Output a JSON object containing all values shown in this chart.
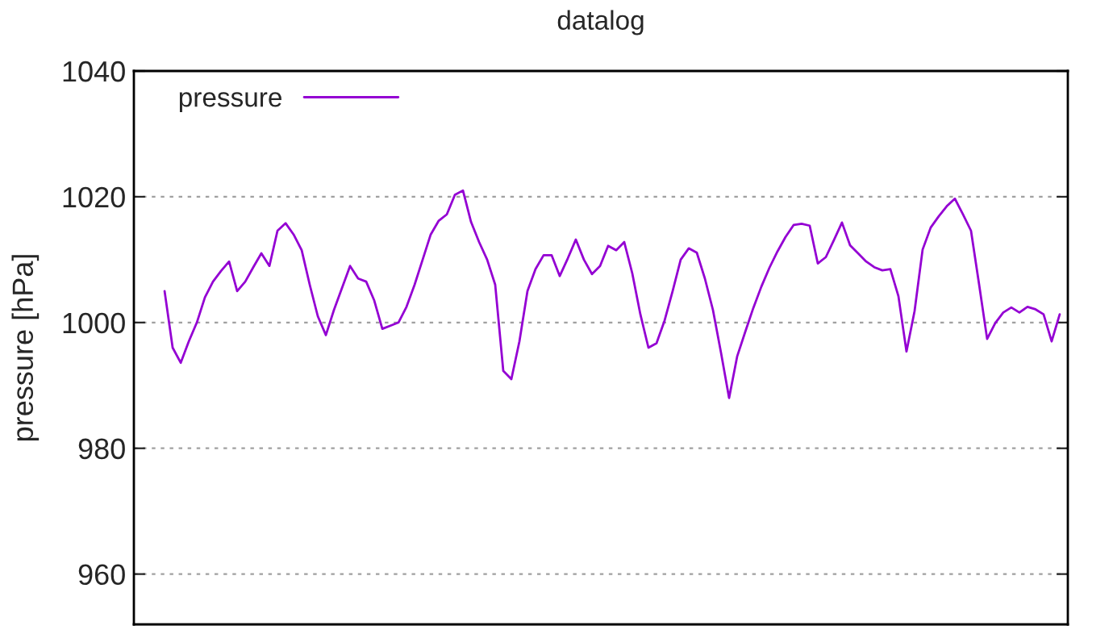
{
  "chart_data": {
    "type": "line",
    "title": "datalog",
    "ylabel": "pressure [hPa]",
    "categories": [
      null,
      null,
      null,
      null,
      null,
      null,
      null,
      null,
      null,
      null,
      null,
      null,
      null,
      null,
      null,
      null,
      null,
      null,
      null,
      null,
      null,
      null,
      null,
      null,
      null,
      null,
      null,
      null,
      null,
      null,
      null,
      null,
      null,
      null,
      null,
      null,
      null,
      null,
      null,
      null,
      null,
      null,
      null,
      null,
      null,
      null,
      null,
      null,
      null,
      null,
      null,
      null,
      null,
      null,
      null,
      null,
      null,
      null,
      null,
      null,
      null,
      null,
      null,
      null,
      null,
      null,
      null,
      null,
      null,
      null,
      null,
      null,
      null,
      null,
      null,
      null,
      null,
      null,
      null,
      null,
      null,
      null,
      null,
      null,
      null,
      null,
      null,
      null,
      null,
      null,
      null,
      null,
      null,
      null,
      null,
      null,
      null,
      null,
      null,
      null,
      null,
      null,
      null,
      null,
      null,
      null,
      null,
      null,
      null,
      null,
      null,
      null
    ],
    "ylim": [
      952,
      1040
    ],
    "yticks": [
      960,
      980,
      1000,
      1020,
      1040
    ],
    "grid": "y",
    "legend": "top left",
    "line_style": "solid",
    "series": [
      {
        "name": "pressure",
        "color": "#9400d3",
        "values": [
          1005,
          996,
          993.6,
          997,
          1000,
          1004,
          1006.5,
          1008.2,
          1009.7,
          1005,
          1006.5,
          1008.8,
          1011,
          1009,
          1014.6,
          1015.8,
          1014,
          1011.5,
          1006,
          1001,
          998,
          1002,
          1005.5,
          1009,
          1007,
          1006.5,
          1003.5,
          999,
          999.5,
          1000,
          1002.5,
          1006,
          1010,
          1014,
          1016.2,
          1017.2,
          1020.3,
          1021,
          1016,
          1012.8,
          1010,
          1006,
          992.3,
          991,
          997,
          1005,
          1008.5,
          1010.7,
          1010.7,
          1007.4,
          1010.2,
          1013.2,
          1010,
          1007.7,
          1009,
          1012.2,
          1011.5,
          1012.8,
          1007.8,
          1001.3,
          996,
          996.7,
          1000.3,
          1005,
          1010,
          1011.8,
          1011.1,
          1007,
          1002,
          995.2,
          988,
          994.6,
          998.5,
          1002.3,
          1005.7,
          1008.7,
          1011.3,
          1013.6,
          1015.5,
          1015.7,
          1015.4,
          1009.4,
          1010.4,
          1013.1,
          1015.9,
          1012.3,
          1011,
          1009.7,
          1008.8,
          1008.3,
          1008.5,
          1004.2,
          995.4,
          1001.8,
          1011.6,
          1015.1,
          1016.9,
          1018.5,
          1019.7,
          1017.2,
          1014.6,
          1006.1,
          997.4,
          999.9,
          1001.6,
          1002.4,
          1001.6,
          1002.5,
          1002.1,
          1001.3,
          997,
          1001.3
        ]
      }
    ]
  }
}
